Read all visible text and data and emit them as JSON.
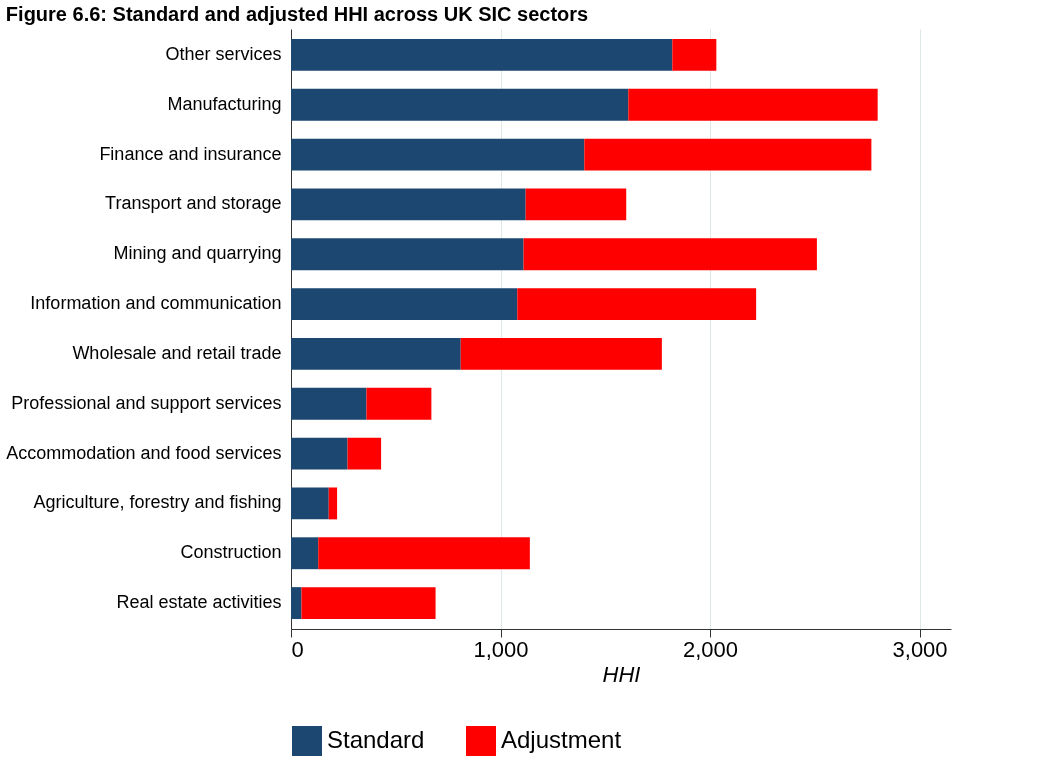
{
  "chart_data": {
    "type": "bar",
    "orientation": "horizontal",
    "stacked": true,
    "title": "Figure 6.6: Standard and adjusted HHI across UK SIC sectors",
    "xlabel": "HHI",
    "categories": [
      "Other services",
      "Manufacturing",
      "Finance and insurance",
      "Transport and storage",
      "Mining and quarrying",
      "Information and communication",
      "Wholesale and retail trade",
      "Professional and support services",
      "Accommodation and food services",
      "Agriculture, forestry and fishing",
      "Construction",
      "Real estate activities"
    ],
    "series": [
      {
        "name": "Standard",
        "color": "#1c4770",
        "values": [
          1820,
          1610,
          1400,
          1120,
          1110,
          1080,
          810,
          360,
          270,
          180,
          130,
          50
        ]
      },
      {
        "name": "Adjustment",
        "color": "#ff0000",
        "values": [
          210,
          1190,
          1370,
          480,
          1400,
          1140,
          960,
          310,
          160,
          40,
          1010,
          640
        ]
      }
    ],
    "xlim": [
      0,
      3150
    ],
    "xticks": [
      0,
      {
        "value": 1000,
        "label": "1,000"
      },
      {
        "value": 2000,
        "label": "2,000"
      },
      {
        "value": 3000,
        "label": "3,000"
      }
    ],
    "grid": "x",
    "legend": "bottom"
  }
}
